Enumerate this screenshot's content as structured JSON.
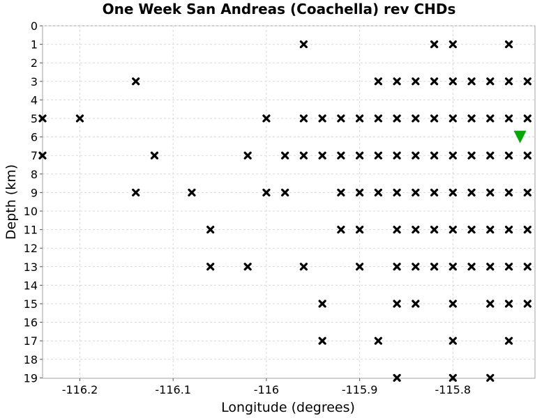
{
  "chart_data": {
    "type": "scatter",
    "title": "One Week San Andreas (Coachella) rev CHDs",
    "xlabel": "Longitude (degrees)",
    "ylabel": "Depth (km)",
    "xlim": [
      -116.24,
      -115.712
    ],
    "ylim": [
      0,
      19
    ],
    "y_inverted": true,
    "grid": true,
    "x_ticks": [
      {
        "value": -116.2,
        "label": "-116.2"
      },
      {
        "value": -116.1,
        "label": "-116.1"
      },
      {
        "value": -116.0,
        "label": "-116"
      },
      {
        "value": -115.9,
        "label": "-115.9"
      },
      {
        "value": -115.8,
        "label": "-115.8"
      }
    ],
    "y_ticks": [
      {
        "value": 0,
        "label": "0"
      },
      {
        "value": 1,
        "label": "1"
      },
      {
        "value": 2,
        "label": "2"
      },
      {
        "value": 3,
        "label": "3"
      },
      {
        "value": 4,
        "label": "4"
      },
      {
        "value": 5,
        "label": "5"
      },
      {
        "value": 6,
        "label": "6"
      },
      {
        "value": 7,
        "label": "7"
      },
      {
        "value": 8,
        "label": "8"
      },
      {
        "value": 9,
        "label": "9"
      },
      {
        "value": 10,
        "label": "10"
      },
      {
        "value": 11,
        "label": "11"
      },
      {
        "value": 12,
        "label": "12"
      },
      {
        "value": 13,
        "label": "13"
      },
      {
        "value": 14,
        "label": "14"
      },
      {
        "value": 15,
        "label": "15"
      },
      {
        "value": 16,
        "label": "16"
      },
      {
        "value": 17,
        "label": "17"
      },
      {
        "value": 18,
        "label": "18"
      },
      {
        "value": 19,
        "label": "19"
      }
    ],
    "series": [
      {
        "marker": "x",
        "color": "#000000",
        "points": [
          {
            "x": -115.96,
            "y": 1
          },
          {
            "x": -115.82,
            "y": 1
          },
          {
            "x": -115.8,
            "y": 1
          },
          {
            "x": -115.74,
            "y": 1
          },
          {
            "x": -116.14,
            "y": 3
          },
          {
            "x": -115.88,
            "y": 3
          },
          {
            "x": -115.86,
            "y": 3
          },
          {
            "x": -115.84,
            "y": 3
          },
          {
            "x": -115.82,
            "y": 3
          },
          {
            "x": -115.8,
            "y": 3
          },
          {
            "x": -115.78,
            "y": 3
          },
          {
            "x": -115.76,
            "y": 3
          },
          {
            "x": -115.74,
            "y": 3
          },
          {
            "x": -115.72,
            "y": 3
          },
          {
            "x": -116.24,
            "y": 5
          },
          {
            "x": -116.2,
            "y": 5
          },
          {
            "x": -116.0,
            "y": 5
          },
          {
            "x": -115.96,
            "y": 5
          },
          {
            "x": -115.94,
            "y": 5
          },
          {
            "x": -115.92,
            "y": 5
          },
          {
            "x": -115.9,
            "y": 5
          },
          {
            "x": -115.88,
            "y": 5
          },
          {
            "x": -115.86,
            "y": 5
          },
          {
            "x": -115.84,
            "y": 5
          },
          {
            "x": -115.82,
            "y": 5
          },
          {
            "x": -115.8,
            "y": 5
          },
          {
            "x": -115.78,
            "y": 5
          },
          {
            "x": -115.76,
            "y": 5
          },
          {
            "x": -115.74,
            "y": 5
          },
          {
            "x": -115.72,
            "y": 5
          },
          {
            "x": -116.24,
            "y": 7
          },
          {
            "x": -116.12,
            "y": 7
          },
          {
            "x": -116.02,
            "y": 7
          },
          {
            "x": -115.98,
            "y": 7
          },
          {
            "x": -115.96,
            "y": 7
          },
          {
            "x": -115.94,
            "y": 7
          },
          {
            "x": -115.92,
            "y": 7
          },
          {
            "x": -115.9,
            "y": 7
          },
          {
            "x": -115.88,
            "y": 7
          },
          {
            "x": -115.86,
            "y": 7
          },
          {
            "x": -115.84,
            "y": 7
          },
          {
            "x": -115.82,
            "y": 7
          },
          {
            "x": -115.8,
            "y": 7
          },
          {
            "x": -115.78,
            "y": 7
          },
          {
            "x": -115.76,
            "y": 7
          },
          {
            "x": -115.74,
            "y": 7
          },
          {
            "x": -115.72,
            "y": 7
          },
          {
            "x": -116.14,
            "y": 9
          },
          {
            "x": -116.08,
            "y": 9
          },
          {
            "x": -116.0,
            "y": 9
          },
          {
            "x": -115.98,
            "y": 9
          },
          {
            "x": -115.92,
            "y": 9
          },
          {
            "x": -115.9,
            "y": 9
          },
          {
            "x": -115.88,
            "y": 9
          },
          {
            "x": -115.86,
            "y": 9
          },
          {
            "x": -115.84,
            "y": 9
          },
          {
            "x": -115.82,
            "y": 9
          },
          {
            "x": -115.8,
            "y": 9
          },
          {
            "x": -115.78,
            "y": 9
          },
          {
            "x": -115.76,
            "y": 9
          },
          {
            "x": -115.74,
            "y": 9
          },
          {
            "x": -115.72,
            "y": 9
          },
          {
            "x": -116.06,
            "y": 11
          },
          {
            "x": -115.92,
            "y": 11
          },
          {
            "x": -115.9,
            "y": 11
          },
          {
            "x": -115.86,
            "y": 11
          },
          {
            "x": -115.84,
            "y": 11
          },
          {
            "x": -115.82,
            "y": 11
          },
          {
            "x": -115.8,
            "y": 11
          },
          {
            "x": -115.78,
            "y": 11
          },
          {
            "x": -115.76,
            "y": 11
          },
          {
            "x": -115.74,
            "y": 11
          },
          {
            "x": -115.72,
            "y": 11
          },
          {
            "x": -116.06,
            "y": 13
          },
          {
            "x": -116.02,
            "y": 13
          },
          {
            "x": -115.96,
            "y": 13
          },
          {
            "x": -115.9,
            "y": 13
          },
          {
            "x": -115.86,
            "y": 13
          },
          {
            "x": -115.84,
            "y": 13
          },
          {
            "x": -115.82,
            "y": 13
          },
          {
            "x": -115.8,
            "y": 13
          },
          {
            "x": -115.78,
            "y": 13
          },
          {
            "x": -115.76,
            "y": 13
          },
          {
            "x": -115.74,
            "y": 13
          },
          {
            "x": -115.72,
            "y": 13
          },
          {
            "x": -115.94,
            "y": 15
          },
          {
            "x": -115.86,
            "y": 15
          },
          {
            "x": -115.84,
            "y": 15
          },
          {
            "x": -115.8,
            "y": 15
          },
          {
            "x": -115.76,
            "y": 15
          },
          {
            "x": -115.74,
            "y": 15
          },
          {
            "x": -115.72,
            "y": 15
          },
          {
            "x": -115.94,
            "y": 17
          },
          {
            "x": -115.88,
            "y": 17
          },
          {
            "x": -115.8,
            "y": 17
          },
          {
            "x": -115.74,
            "y": 17
          },
          {
            "x": -115.86,
            "y": 19
          },
          {
            "x": -115.8,
            "y": 19
          },
          {
            "x": -115.76,
            "y": 19
          }
        ]
      },
      {
        "marker": "triangle-down",
        "color": "#00aa00",
        "points": [
          {
            "x": -115.728,
            "y": 6
          }
        ]
      }
    ]
  }
}
